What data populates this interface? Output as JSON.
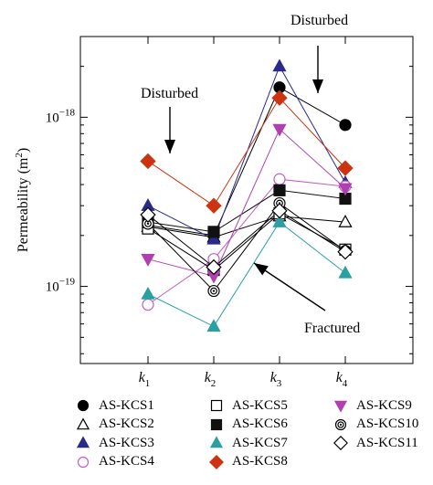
{
  "chart_data": {
    "type": "line",
    "ylabel": "Permeability (m",
    "ylabel_sup": "2",
    "ylabel_close": ")",
    "yscale": "log",
    "ylim": [
      3.5e-20,
      3e-18
    ],
    "yticks": [
      {
        "value": 1e-18,
        "base": "10",
        "exp": "−18"
      },
      {
        "value": 1e-19,
        "base": "10",
        "exp": "−19"
      }
    ],
    "categories": [
      {
        "main": "k",
        "sub": "1"
      },
      {
        "main": "k",
        "sub": "2"
      },
      {
        "main": "k",
        "sub": "3"
      },
      {
        "main": "k",
        "sub": "4"
      }
    ],
    "series": [
      {
        "name": "AS-KCS1",
        "marker": "circle-filled",
        "color": "#000000",
        "values": [
          2.3e-19,
          2e-19,
          1.5e-18,
          9e-19
        ]
      },
      {
        "name": "AS-KCS2",
        "marker": "triangle-open",
        "color": "#000000",
        "values": [
          2.25e-19,
          1.95e-19,
          2.6e-19,
          2.4e-19
        ]
      },
      {
        "name": "AS-KCS3",
        "marker": "triangle-filled",
        "color": "#2a2a8a",
        "values": [
          3e-19,
          1.9e-19,
          2e-18,
          4.1e-19
        ]
      },
      {
        "name": "AS-KCS4",
        "marker": "circle-open",
        "color": "#c060c0",
        "values": [
          7.8e-20,
          1.45e-19,
          4.3e-19,
          3.9e-19
        ]
      },
      {
        "name": "AS-KCS5",
        "marker": "square-open",
        "color": "#000000",
        "values": [
          2.2e-19,
          1.25e-19,
          2.7e-19,
          1.65e-19
        ]
      },
      {
        "name": "AS-KCS6",
        "marker": "square-filled",
        "color": "#111111",
        "values": [
          2.4e-19,
          2.1e-19,
          3.7e-19,
          3.3e-19
        ]
      },
      {
        "name": "AS-KCS7",
        "marker": "triangle-filled",
        "color": "#2aa0a0",
        "values": [
          9e-20,
          5.8e-20,
          2.4e-19,
          1.2e-19
        ]
      },
      {
        "name": "AS-KCS8",
        "marker": "diamond-filled",
        "color": "#cc3311",
        "values": [
          5.5e-19,
          3e-19,
          1.3e-18,
          5e-19
        ]
      },
      {
        "name": "AS-KCS9",
        "marker": "triangle-down-filled",
        "color": "#b040b0",
        "values": [
          1.45e-19,
          1.15e-19,
          8.5e-19,
          3.8e-19
        ]
      },
      {
        "name": "AS-KCS10",
        "marker": "circle-dot",
        "color": "#000000",
        "values": [
          2.35e-19,
          9.4e-20,
          3.1e-19,
          1.62e-19
        ]
      },
      {
        "name": "AS-KCS11",
        "marker": "diamond-open",
        "color": "#000000",
        "values": [
          2.65e-19,
          1.3e-19,
          2.8e-19,
          1.6e-19
        ]
      }
    ],
    "annotations": [
      {
        "text": "Disturbed",
        "position": "top-right"
      },
      {
        "text": "Disturbed",
        "position": "upper-left"
      },
      {
        "text": "Fractured",
        "position": "bottom-right"
      }
    ],
    "legend_position": "bottom",
    "grid": false
  }
}
